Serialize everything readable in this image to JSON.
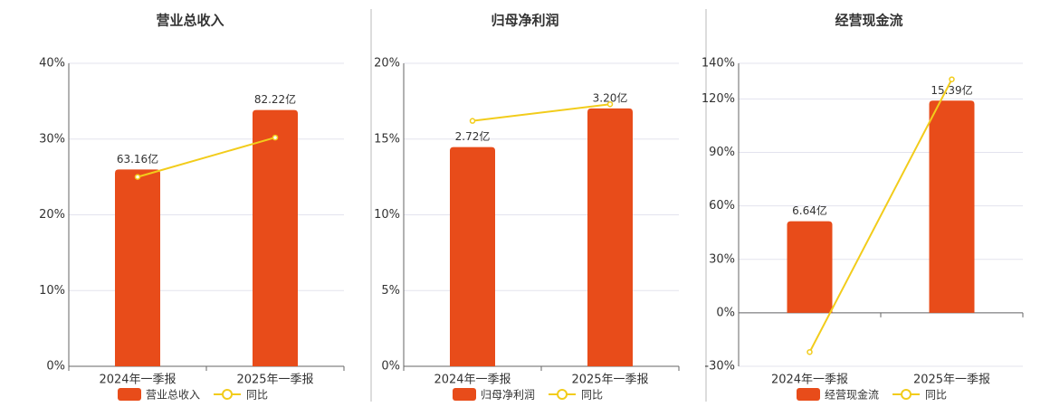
{
  "chart_data": [
    {
      "type": "bar",
      "title": "营业总收入",
      "categories": [
        "2024年一季报",
        "2025年一季报"
      ],
      "series": [
        {
          "name": "营业总收入",
          "color": "#e84c1a",
          "axis": "y2",
          "values": [
            63.16,
            82.22
          ],
          "value_labels": [
            "63.16亿",
            "82.22亿"
          ]
        },
        {
          "name": "同比",
          "type": "line",
          "color": "#f2cc1b",
          "values": [
            25,
            30.2
          ]
        }
      ],
      "ylim": [
        0,
        40
      ],
      "yticks": [
        {
          "value": 0,
          "label": "0%"
        },
        {
          "value": 10,
          "label": "10%"
        },
        {
          "value": 20,
          "label": "20%"
        },
        {
          "value": 30,
          "label": "30%"
        },
        {
          "value": 40,
          "label": "40%"
        }
      ],
      "y2lim": [
        0,
        97.2
      ],
      "grid": true
    },
    {
      "type": "bar",
      "title": "归母净利润",
      "categories": [
        "2024年一季报",
        "2025年一季报"
      ],
      "series": [
        {
          "name": "归母净利润",
          "color": "#e84c1a",
          "axis": "y2",
          "values": [
            2.72,
            3.2
          ],
          "value_labels": [
            "2.72亿",
            "3.20亿"
          ]
        },
        {
          "name": "同比",
          "type": "line",
          "color": "#f2cc1b",
          "values": [
            16.2,
            17.3
          ]
        }
      ],
      "ylim": [
        0,
        20
      ],
      "yticks": [
        {
          "value": 0,
          "label": "0%"
        },
        {
          "value": 5,
          "label": "5%"
        },
        {
          "value": 10,
          "label": "10%"
        },
        {
          "value": 15,
          "label": "15%"
        },
        {
          "value": 20,
          "label": "20%"
        }
      ],
      "y2lim": [
        0,
        3.76
      ],
      "grid": true
    },
    {
      "type": "bar",
      "title": "经营现金流",
      "categories": [
        "2024年一季报",
        "2025年一季报"
      ],
      "series": [
        {
          "name": "经营现金流",
          "color": "#e84c1a",
          "axis": "y2",
          "values": [
            6.64,
            15.39
          ],
          "value_labels": [
            "6.64亿",
            "15.39亿"
          ]
        },
        {
          "name": "同比",
          "type": "line",
          "color": "#f2cc1b",
          "values": [
            -22,
            131
          ]
        }
      ],
      "ylim": [
        -30,
        140
      ],
      "yticks": [
        {
          "value": -30,
          "label": "-30%"
        },
        {
          "value": 0,
          "label": "0%"
        },
        {
          "value": 30,
          "label": "30%"
        },
        {
          "value": 60,
          "label": "60%"
        },
        {
          "value": 90,
          "label": "90%"
        },
        {
          "value": 120,
          "label": "120%"
        },
        {
          "value": 140,
          "label": "140%"
        }
      ],
      "y2lim": [
        -3.88,
        18.1
      ],
      "grid": true
    }
  ]
}
